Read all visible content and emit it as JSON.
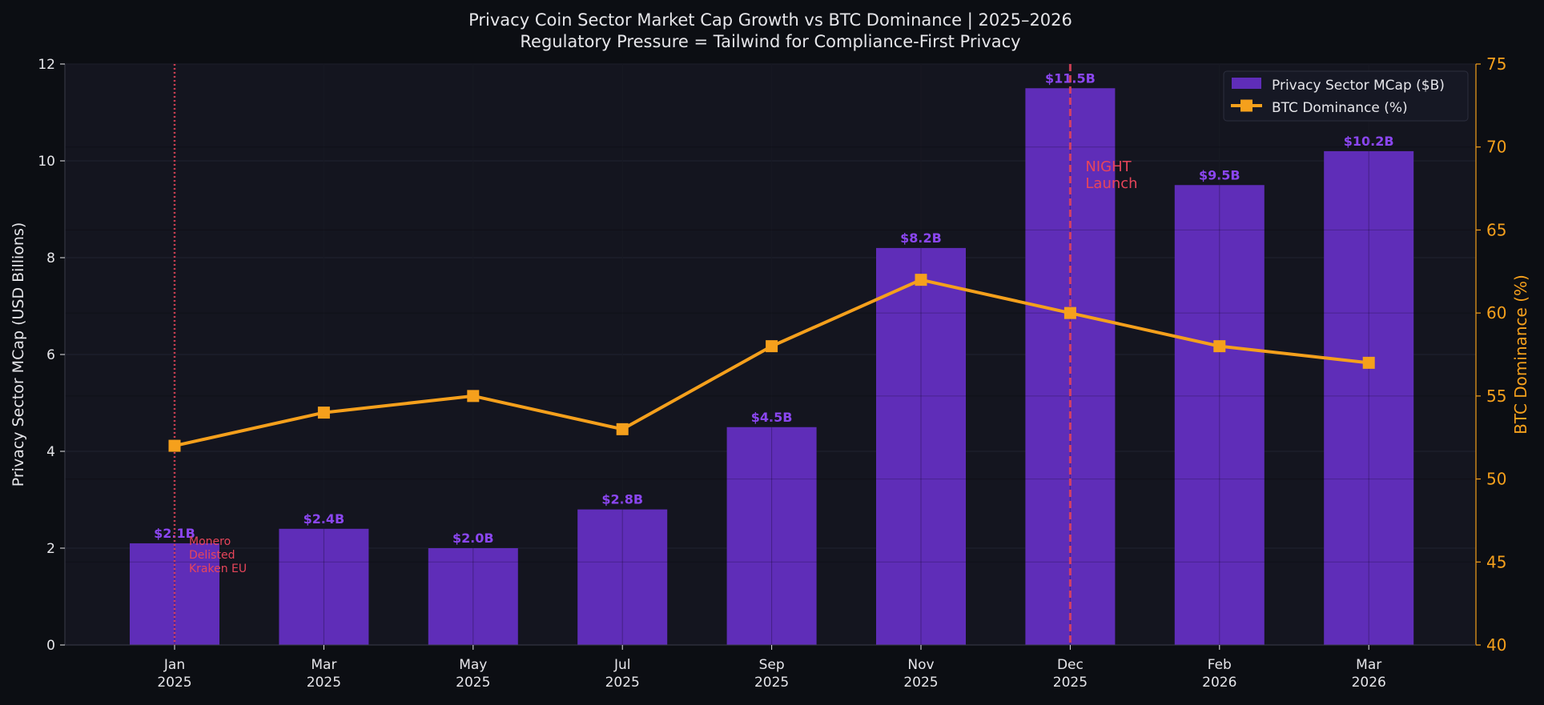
{
  "chart_data": {
    "type": "bar",
    "title": "Privacy Coin Sector Market Cap Growth vs BTC Dominance  |  2025–2026",
    "subtitle": "Regulatory Pressure = Tailwind for Compliance-First Privacy",
    "categories": [
      [
        "Jan",
        "2025"
      ],
      [
        "Mar",
        "2025"
      ],
      [
        "May",
        "2025"
      ],
      [
        "Jul",
        "2025"
      ],
      [
        "Sep",
        "2025"
      ],
      [
        "Nov",
        "2025"
      ],
      [
        "Dec",
        "2025"
      ],
      [
        "Feb",
        "2026"
      ],
      [
        "Mar",
        "2026"
      ]
    ],
    "series": [
      {
        "name": "Privacy Sector MCap ($B)",
        "type": "bar",
        "axis": "left",
        "values": [
          2.1,
          2.4,
          2.0,
          2.8,
          4.5,
          8.2,
          11.5,
          9.5,
          10.2
        ],
        "labels": [
          "$2.1B",
          "$2.4B",
          "$2.0B",
          "$2.8B",
          "$4.5B",
          "$8.2B",
          "$11.5B",
          "$9.5B",
          "$10.2B"
        ]
      },
      {
        "name": "BTC Dominance (%)",
        "type": "line",
        "axis": "right",
        "marker": "square",
        "values": [
          52,
          54,
          55,
          53,
          58,
          62,
          60,
          58,
          57
        ]
      }
    ],
    "ylabel": "Privacy Sector MCap (USD Billions)",
    "y2label": "BTC Dominance (%)",
    "ylim": [
      0,
      12
    ],
    "y2lim": [
      40,
      75
    ],
    "yticks": [
      "0",
      "2",
      "4",
      "6",
      "8",
      "10",
      "12"
    ],
    "y2ticks": [
      "40",
      "45",
      "50",
      "55",
      "60",
      "65",
      "70",
      "75"
    ],
    "grid": true,
    "legend_position": "top-right",
    "annotations": [
      {
        "category_index": 0,
        "style": "dotted",
        "lines": [
          "Monero",
          "Delisted",
          "Kraken EU"
        ]
      },
      {
        "category_index": 6,
        "style": "dashed",
        "lines": [
          "NIGHT",
          "Launch"
        ]
      }
    ]
  },
  "colors": {
    "background": "#0c0e13",
    "plot_background": "#14151f",
    "bar": "#5f2db8",
    "bar_label": "#8b46f0",
    "line": "#f5a01c",
    "annotation": "#e8455a",
    "text": "#e6e6ea",
    "grid": "#262838"
  }
}
